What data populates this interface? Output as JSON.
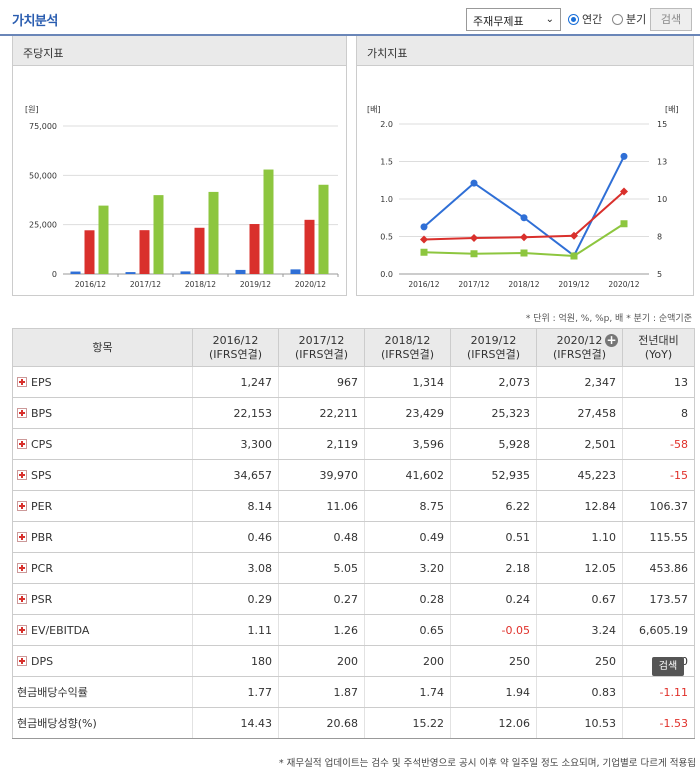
{
  "header": {
    "title": "가치분석",
    "select_value": "주재무제표",
    "radio_annual": "연간",
    "radio_quarter": "분기",
    "search_button": "검색"
  },
  "panels": {
    "left_title": "주당지표",
    "right_title": "가치지표"
  },
  "colors": {
    "eps": "#2f6fd6",
    "bps": "#d9302c",
    "sps": "#8dc63f",
    "per": "#2f6fd6",
    "pbr": "#d9302c",
    "psr": "#8dc63f"
  },
  "chart_data": [
    {
      "type": "bar",
      "unit_label": "[원]",
      "categories": [
        "2016/12",
        "2017/12",
        "2018/12",
        "2019/12",
        "2020/12"
      ],
      "ylim": [
        0,
        75000
      ],
      "yticks": [
        "0",
        "25,000",
        "50,000",
        "75,000"
      ],
      "series": [
        {
          "name": "EPS",
          "values": [
            1247,
            967,
            1314,
            2073,
            2347
          ]
        },
        {
          "name": "BPS",
          "values": [
            22153,
            22211,
            23429,
            25323,
            27458
          ]
        },
        {
          "name": "SPS",
          "values": [
            34657,
            39970,
            41602,
            52935,
            45223
          ]
        }
      ]
    },
    {
      "type": "line",
      "unit_left": "[배]",
      "unit_right": "[배]",
      "categories": [
        "2016/12",
        "2017/12",
        "2018/12",
        "2019/12",
        "2020/12"
      ],
      "ylim_left": [
        0,
        2.0
      ],
      "yticks_left": [
        "0.0",
        "0.5",
        "1.0",
        "1.5",
        "2.0"
      ],
      "ylim_right": [
        5,
        15
      ],
      "yticks_right": [
        "5",
        "8",
        "10",
        "13",
        "15"
      ],
      "series": [
        {
          "name": "PER",
          "axis": "right",
          "values": [
            8.14,
            11.06,
            8.75,
            6.22,
            12.84
          ]
        },
        {
          "name": "PBR(좌)",
          "axis": "left",
          "values": [
            0.46,
            0.48,
            0.49,
            0.51,
            1.1
          ]
        },
        {
          "name": "PSR(좌)",
          "axis": "left",
          "values": [
            0.29,
            0.27,
            0.28,
            0.24,
            0.67
          ]
        }
      ]
    }
  ],
  "unit_note": "* 단위 : 억원, %, %p, 배   * 분기 : 순액기준",
  "table": {
    "head_item": "항목",
    "columns": [
      {
        "year": "2016/12",
        "sub": "(IFRS연결)"
      },
      {
        "year": "2017/12",
        "sub": "(IFRS연결)"
      },
      {
        "year": "2018/12",
        "sub": "(IFRS연결)"
      },
      {
        "year": "2019/12",
        "sub": "(IFRS연결)"
      },
      {
        "year": "2020/12",
        "sub": "(IFRS연결)"
      }
    ],
    "yoy_head": "전년대비",
    "yoy_sub": "(YoY)",
    "rows": [
      {
        "label": "EPS",
        "plus": true,
        "values": [
          "1,247",
          "967",
          "1,314",
          "2,073",
          "2,347"
        ],
        "yoy": "13"
      },
      {
        "label": "BPS",
        "plus": true,
        "values": [
          "22,153",
          "22,211",
          "23,429",
          "25,323",
          "27,458"
        ],
        "yoy": "8"
      },
      {
        "label": "CPS",
        "plus": true,
        "values": [
          "3,300",
          "2,119",
          "3,596",
          "5,928",
          "2,501"
        ],
        "yoy": "-58"
      },
      {
        "label": "SPS",
        "plus": true,
        "values": [
          "34,657",
          "39,970",
          "41,602",
          "52,935",
          "45,223"
        ],
        "yoy": "-15"
      },
      {
        "label": "PER",
        "plus": true,
        "values": [
          "8.14",
          "11.06",
          "8.75",
          "6.22",
          "12.84"
        ],
        "yoy": "106.37"
      },
      {
        "label": "PBR",
        "plus": true,
        "values": [
          "0.46",
          "0.48",
          "0.49",
          "0.51",
          "1.10"
        ],
        "yoy": "115.55"
      },
      {
        "label": "PCR",
        "plus": true,
        "values": [
          "3.08",
          "5.05",
          "3.20",
          "2.18",
          "12.05"
        ],
        "yoy": "453.86"
      },
      {
        "label": "PSR",
        "plus": true,
        "values": [
          "0.29",
          "0.27",
          "0.28",
          "0.24",
          "0.67"
        ],
        "yoy": "173.57"
      },
      {
        "label": "EV/EBITDA",
        "plus": true,
        "values": [
          "1.11",
          "1.26",
          "0.65",
          "-0.05",
          "3.24"
        ],
        "yoy": "6,605.19"
      },
      {
        "label": "DPS",
        "plus": true,
        "values": [
          "180",
          "200",
          "200",
          "250",
          "250"
        ],
        "yoy": "0"
      },
      {
        "label": "현금배당수익률",
        "plus": false,
        "values": [
          "1.77",
          "1.87",
          "1.74",
          "1.94",
          "0.83"
        ],
        "yoy": "-1.11"
      },
      {
        "label": "현금배당성향(%)",
        "plus": false,
        "values": [
          "14.43",
          "20.68",
          "15.22",
          "12.06",
          "10.53"
        ],
        "yoy": "-1.53"
      }
    ]
  },
  "tooltip": "검색",
  "footnote": "* 재무실적 업데이트는 검수 및 주석반영으로 공시 이후 약 일주일 정도 소요되며, 기업별로 다르게 적용됩"
}
